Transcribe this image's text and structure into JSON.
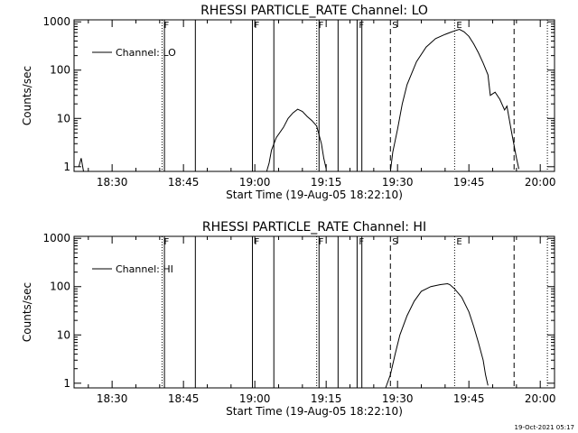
{
  "footer_timestamp": "19-Oct-2021 05:17",
  "chart_data": [
    {
      "type": "line",
      "title": "RHESSI PARTICLE_RATE Channel: LO",
      "xlabel": "Start Time (19-Aug-05 18:22:10)",
      "ylabel": "Counts/sec",
      "yscale": "log",
      "ylim": [
        0.8,
        1100
      ],
      "xlim": [
        "18:22",
        "20:03"
      ],
      "x_ticks": [
        "18:30",
        "18:45",
        "19:00",
        "19:15",
        "19:30",
        "19:45",
        "20:00"
      ],
      "y_ticks": [
        {
          "value": 1,
          "label": "1"
        },
        {
          "value": 10,
          "label": "10"
        },
        {
          "value": 100,
          "label": "100"
        },
        {
          "value": 1000,
          "label": "1000"
        }
      ],
      "grid": false,
      "legend": {
        "position": "top-left",
        "entries": [
          "Channel: LO"
        ]
      },
      "series": [
        {
          "name": "Channel: LO",
          "segments": [
            [
              [
                "18:23.0",
                1.0
              ],
              [
                "18:23.5",
                1.5
              ],
              [
                "18:24.0",
                0.8
              ]
            ],
            [
              [
                "19:02.5",
                0.8
              ],
              [
                "19:03.0",
                1.2
              ],
              [
                "19:03.5",
                2.2
              ],
              [
                "19:04.5",
                4.0
              ],
              [
                "19:06.0",
                6.5
              ],
              [
                "19:07.0",
                10.0
              ],
              [
                "19:08.0",
                13.0
              ],
              [
                "19:09.0",
                15.5
              ],
              [
                "19:10.0",
                14.0
              ],
              [
                "19:11.0",
                11.0
              ],
              [
                "19:12.0",
                9.0
              ],
              [
                "19:13.0",
                7.0
              ],
              [
                "19:14.0",
                3.0
              ],
              [
                "19:14.5",
                1.5
              ],
              [
                "19:15.0",
                0.9
              ]
            ],
            [
              [
                "19:28.5",
                0.8
              ],
              [
                "19:29.0",
                2.0
              ],
              [
                "19:30.0",
                6.0
              ],
              [
                "19:31.0",
                20.0
              ],
              [
                "19:32.0",
                50.0
              ],
              [
                "19:34.0",
                150.0
              ],
              [
                "19:36.0",
                300.0
              ],
              [
                "19:38.0",
                450.0
              ],
              [
                "19:40.0",
                550.0
              ],
              [
                "19:41.0",
                600.0
              ],
              [
                "19:42.0",
                650.0
              ],
              [
                "19:43.0",
                700.0
              ],
              [
                "19:44.0",
                620.0
              ],
              [
                "19:45.0",
                500.0
              ],
              [
                "19:46.0",
                350.0
              ],
              [
                "19:47.0",
                230.0
              ],
              [
                "19:48.0",
                140.0
              ],
              [
                "19:49.0",
                80.0
              ],
              [
                "19:49.5",
                30.0
              ],
              [
                "19:50.5",
                35.0
              ],
              [
                "19:51.5",
                25.0
              ],
              [
                "19:52.5",
                15.0
              ],
              [
                "19:53.0",
                18.0
              ],
              [
                "19:54.0",
                5.0
              ],
              [
                "19:55.0",
                1.5
              ],
              [
                "19:55.5",
                0.9
              ]
            ]
          ]
        }
      ],
      "flags": [
        {
          "label": "F",
          "time": "18:40.5",
          "style": "dotted"
        },
        {
          "label": "",
          "time": "18:41.0",
          "style": "solid"
        },
        {
          "label": "",
          "time": "18:47.5",
          "style": "solid"
        },
        {
          "label": "F",
          "time": "18:59.5",
          "style": "solid"
        },
        {
          "label": "",
          "time": "19:04.0",
          "style": "solid"
        },
        {
          "label": "F",
          "time": "19:13.0",
          "style": "dotted"
        },
        {
          "label": "",
          "time": "19:13.5",
          "style": "solid"
        },
        {
          "label": "",
          "time": "19:17.5",
          "style": "solid"
        },
        {
          "label": "F",
          "time": "19:21.5",
          "style": "solid"
        },
        {
          "label": "",
          "time": "19:22.5",
          "style": "solid"
        },
        {
          "label": "S",
          "time": "19:28.5",
          "style": "dashed"
        },
        {
          "label": "E",
          "time": "19:42.0",
          "style": "dotted"
        },
        {
          "label": "",
          "time": "19:54.5",
          "style": "dashed"
        },
        {
          "label": "",
          "time": "19:61.5",
          "style": "dotted"
        }
      ]
    },
    {
      "type": "line",
      "title": "RHESSI PARTICLE_RATE Channel: HI",
      "xlabel": "Start Time (19-Aug-05 18:22:10)",
      "ylabel": "Counts/sec",
      "yscale": "log",
      "ylim": [
        0.8,
        1100
      ],
      "xlim": [
        "18:22",
        "20:03"
      ],
      "x_ticks": [
        "18:30",
        "18:45",
        "19:00",
        "19:15",
        "19:30",
        "19:45",
        "20:00"
      ],
      "y_ticks": [
        {
          "value": 1,
          "label": "1"
        },
        {
          "value": 10,
          "label": "10"
        },
        {
          "value": 100,
          "label": "100"
        },
        {
          "value": 1000,
          "label": "1000"
        }
      ],
      "grid": false,
      "legend": {
        "position": "top-left",
        "entries": [
          "Channel: HI"
        ]
      },
      "series": [
        {
          "name": "Channel: HI",
          "segments": [
            [
              [
                "19:27.5",
                0.8
              ],
              [
                "19:28.5",
                1.5
              ],
              [
                "19:29.5",
                4.0
              ],
              [
                "19:30.5",
                10.0
              ],
              [
                "19:32.0",
                25.0
              ],
              [
                "19:33.5",
                50.0
              ],
              [
                "19:35.0",
                80.0
              ],
              [
                "19:37.0",
                100.0
              ],
              [
                "19:39.0",
                110.0
              ],
              [
                "19:40.5",
                115.0
              ],
              [
                "19:41.0",
                110.0
              ],
              [
                "19:42.0",
                90.0
              ],
              [
                "19:43.5",
                60.0
              ],
              [
                "19:45.0",
                30.0
              ],
              [
                "19:46.0",
                15.0
              ],
              [
                "19:47.0",
                7.0
              ],
              [
                "19:48.0",
                3.0
              ],
              [
                "19:48.5",
                1.5
              ],
              [
                "19:49.0",
                0.9
              ]
            ]
          ]
        }
      ],
      "flags": [
        {
          "label": "F",
          "time": "18:40.5",
          "style": "dotted"
        },
        {
          "label": "",
          "time": "18:41.0",
          "style": "solid"
        },
        {
          "label": "",
          "time": "18:47.5",
          "style": "solid"
        },
        {
          "label": "F",
          "time": "18:59.5",
          "style": "solid"
        },
        {
          "label": "",
          "time": "19:04.0",
          "style": "solid"
        },
        {
          "label": "F",
          "time": "19:13.0",
          "style": "dotted"
        },
        {
          "label": "",
          "time": "19:13.5",
          "style": "solid"
        },
        {
          "label": "",
          "time": "19:17.5",
          "style": "solid"
        },
        {
          "label": "F",
          "time": "19:21.5",
          "style": "solid"
        },
        {
          "label": "",
          "time": "19:22.5",
          "style": "solid"
        },
        {
          "label": "S",
          "time": "19:28.5",
          "style": "dashed"
        },
        {
          "label": "E",
          "time": "19:42.0",
          "style": "dotted"
        },
        {
          "label": "",
          "time": "19:54.5",
          "style": "dashed"
        },
        {
          "label": "",
          "time": "19:61.5",
          "style": "dotted"
        }
      ]
    }
  ]
}
